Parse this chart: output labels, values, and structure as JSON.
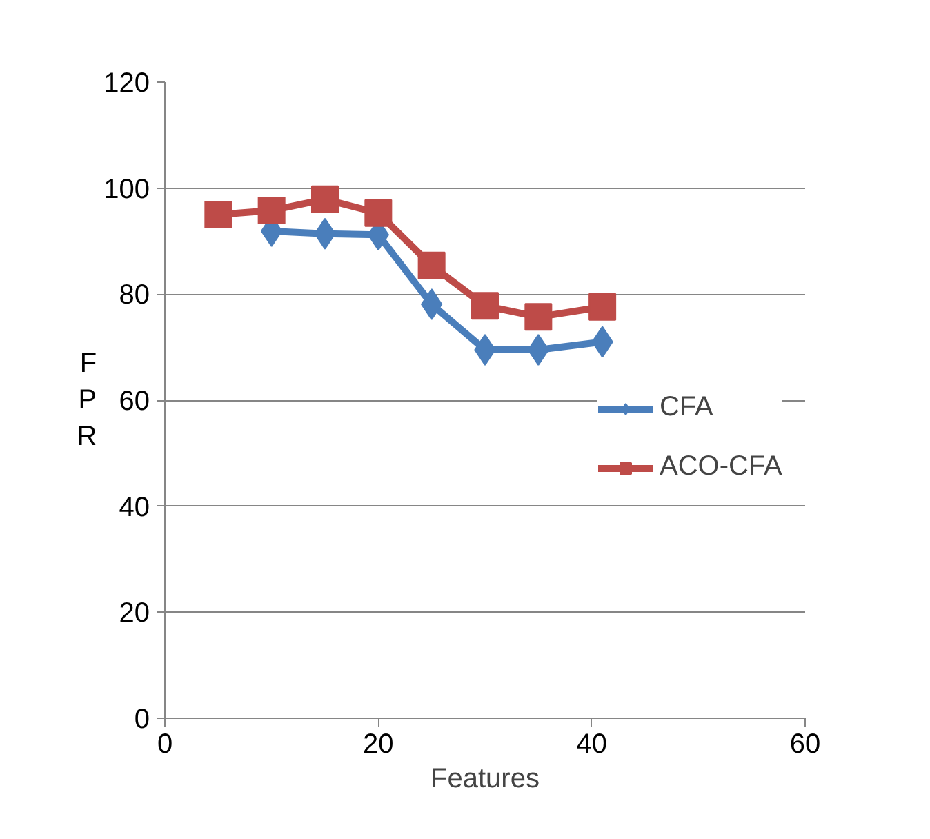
{
  "chart_data": {
    "type": "line",
    "xlabel": "Features",
    "ylabel": "FPR",
    "xlim": [
      0,
      60
    ],
    "xticks": [
      0,
      20,
      40,
      60
    ],
    "ylim": [
      0,
      120
    ],
    "yticks": [
      0,
      20,
      40,
      60,
      80,
      100,
      120
    ],
    "grid": "y",
    "legend": "right",
    "series": [
      {
        "name": "CFA",
        "color": "#4a7ebb",
        "marker": "diamond",
        "x": [
          10,
          15,
          20,
          25,
          30,
          35,
          41
        ],
        "values": [
          91.9,
          91.4,
          91.2,
          78.1,
          69.5,
          69.5,
          71
        ]
      },
      {
        "name": "ACO-CFA",
        "color": "#be4b48",
        "marker": "square",
        "x": [
          5,
          10,
          15,
          20,
          25,
          30,
          35,
          41
        ],
        "values": [
          95,
          95.8,
          97.9,
          95.3,
          85.4,
          77.8,
          75.7,
          77.6
        ]
      }
    ]
  }
}
